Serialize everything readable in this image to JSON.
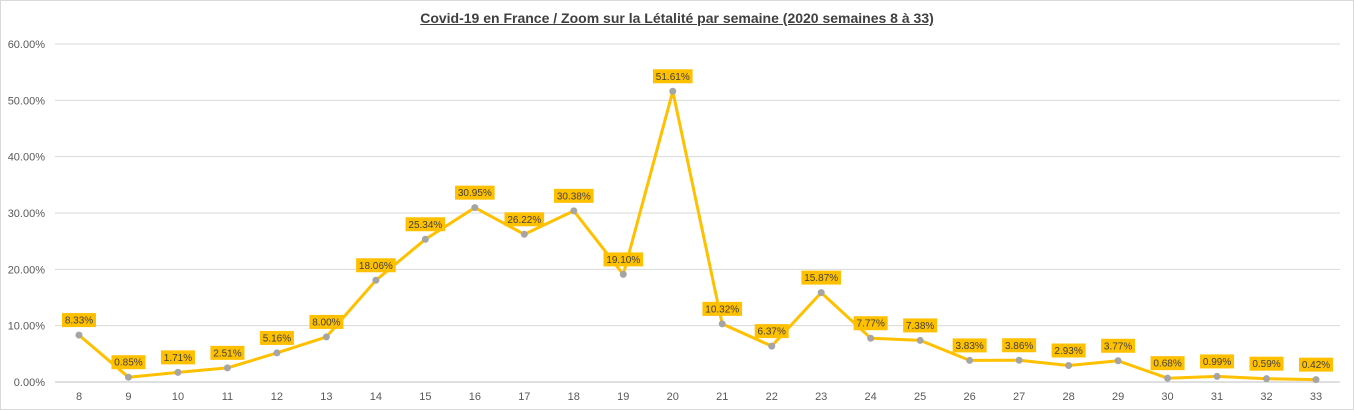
{
  "chart_data": {
    "type": "line",
    "title": "Covid-19 en France / Zoom  sur la Létalité par semaine (2020 semaines 8 à 33)",
    "xlabel": "",
    "ylabel": "",
    "categories": [
      "8",
      "9",
      "10",
      "11",
      "12",
      "13",
      "14",
      "15",
      "16",
      "17",
      "18",
      "19",
      "20",
      "21",
      "22",
      "23",
      "24",
      "25",
      "26",
      "27",
      "28",
      "29",
      "30",
      "31",
      "32",
      "33"
    ],
    "series": [
      {
        "values": [
          8.33,
          0.85,
          1.71,
          2.51,
          5.16,
          8.0,
          18.06,
          25.34,
          30.95,
          26.22,
          30.38,
          19.1,
          51.61,
          10.32,
          6.37,
          15.87,
          7.77,
          7.38,
          3.83,
          3.86,
          2.93,
          3.77,
          0.68,
          0.99,
          0.59,
          0.42
        ],
        "labels": [
          "8.33%",
          "0.85%",
          "1.71%",
          "2.51%",
          "5.16%",
          "8.00%",
          "18.06%",
          "25.34%",
          "30.95%",
          "26.22%",
          "30.38%",
          "19.10%",
          "51.61%",
          "10.32%",
          "6.37%",
          "15.87%",
          "7.77%",
          "7.38%",
          "3.83%",
          "3.86%",
          "2.93%",
          "3.77%",
          "0.68%",
          "0.99%",
          "0.59%",
          "0.42%"
        ]
      }
    ],
    "ylim": [
      0,
      60
    ],
    "y_ticks": [
      "0.00%",
      "10.00%",
      "20.00%",
      "30.00%",
      "40.00%",
      "50.00%",
      "60.00%"
    ],
    "y_tick_values": [
      0,
      10,
      20,
      30,
      40,
      50,
      60
    ],
    "grid": true,
    "legend": "none",
    "colors": {
      "line": "#FFC000",
      "marker": "#A5A5A5",
      "label_background": "#FFC000",
      "grid": "#d9d9d9",
      "axis": "#bfbfbf"
    }
  }
}
